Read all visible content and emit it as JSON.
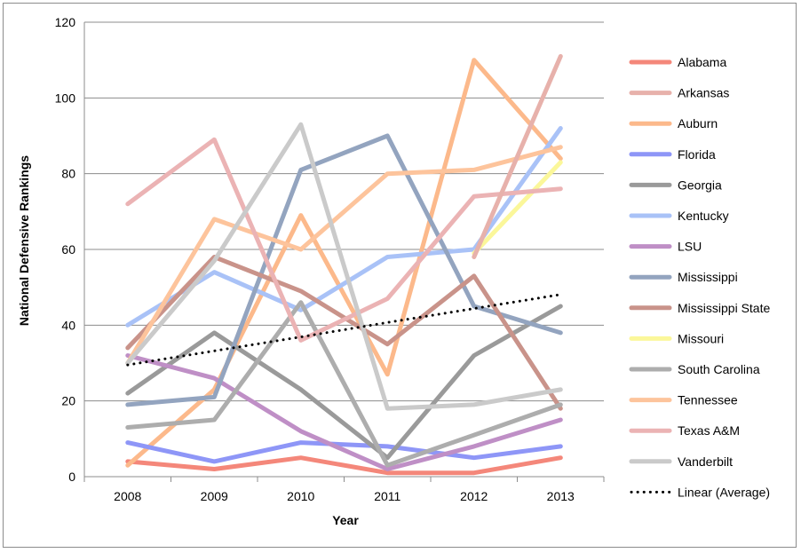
{
  "chart_data": {
    "type": "line",
    "title": "",
    "xlabel": "Year",
    "ylabel": "National Defensive Rankings",
    "ylim": [
      0,
      120
    ],
    "yticks": [
      0,
      20,
      40,
      60,
      80,
      100,
      120
    ],
    "categories": [
      "2008",
      "2009",
      "2010",
      "2011",
      "2012",
      "2013"
    ],
    "grid": "horizontal",
    "legend_position": "right",
    "series": [
      {
        "name": "Alabama",
        "color": "#f4877a",
        "values": [
          4,
          2,
          5,
          1,
          1,
          5
        ]
      },
      {
        "name": "Arkansas",
        "color": "#e7b1ab",
        "values": [
          null,
          null,
          null,
          null,
          null,
          null
        ]
      },
      {
        "name": "Auburn",
        "color": "#fcb98b",
        "values": [
          3,
          23,
          69,
          27,
          110,
          84
        ]
      },
      {
        "name": "Florida",
        "color": "#8e96f7",
        "values": [
          9,
          4,
          9,
          8,
          5,
          8
        ]
      },
      {
        "name": "Georgia",
        "color": "#9a9a9a",
        "values": [
          22,
          38,
          23,
          5,
          32,
          45
        ]
      },
      {
        "name": "Kentucky",
        "color": "#a9c2f7",
        "values": [
          40,
          54,
          44,
          58,
          60,
          92
        ]
      },
      {
        "name": "LSU",
        "color": "#bf8fc6",
        "values": [
          32,
          26,
          12,
          2,
          8,
          15
        ]
      },
      {
        "name": "Mississippi",
        "color": "#93a4bf",
        "values": [
          19,
          21,
          81,
          90,
          45,
          38
        ]
      },
      {
        "name": "Mississippi State",
        "color": "#c9938a",
        "values": [
          34,
          58,
          49,
          35,
          53,
          18
        ]
      },
      {
        "name": "Missouri",
        "color": "#fbf79a",
        "values": [
          null,
          null,
          null,
          null,
          59,
          83
        ]
      },
      {
        "name": "South Carolina",
        "color": "#adadad",
        "values": [
          13,
          15,
          46,
          3,
          11,
          19
        ]
      },
      {
        "name": "Tennessee",
        "color": "#fdc49c",
        "values": [
          30,
          68,
          60,
          80,
          81,
          87
        ]
      },
      {
        "name": "Texas A&M",
        "color": "#ebb3b4",
        "values": [
          72,
          89,
          36,
          47,
          74,
          76
        ]
      },
      {
        "name": "Vanderbilt",
        "color": "#cacaca",
        "values": [
          30,
          57,
          93,
          18,
          19,
          23
        ]
      }
    ],
    "extra_lines": [
      {
        "color": "#e7b1ab",
        "values": [
          null,
          null,
          null,
          null,
          58,
          111
        ]
      }
    ],
    "trendline": {
      "name": "Linear (Average)",
      "color": "#000000",
      "style": "dotted",
      "values": [
        29.5,
        33.2,
        36.9,
        40.7,
        44.4,
        48.1
      ]
    }
  }
}
